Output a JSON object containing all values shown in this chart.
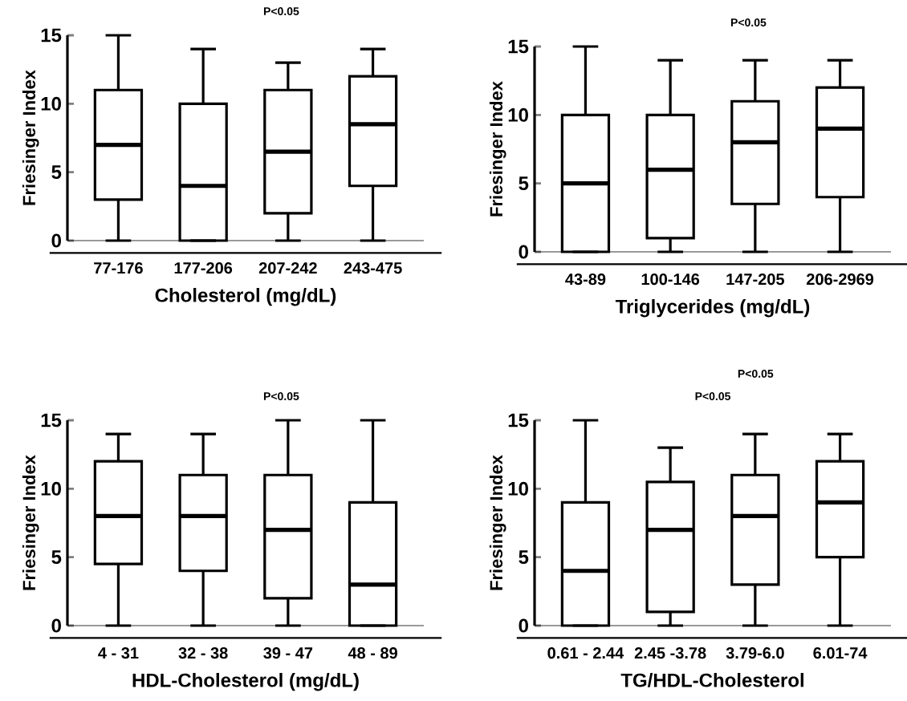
{
  "chart_data": [
    {
      "type": "box",
      "ylabel": "Friesinger Index",
      "xlabel": "Cholesterol (mg/dL)",
      "categories": [
        "77-176",
        "177-206",
        "207-242",
        "243-475"
      ],
      "ylim": [
        0,
        15
      ],
      "yticks": [
        0,
        5,
        10,
        15
      ],
      "annotations": [
        "P<0.05"
      ],
      "boxes": [
        {
          "low": 0,
          "q1": 3,
          "median": 7,
          "q3": 11,
          "high": 15
        },
        {
          "low": 0,
          "q1": 0,
          "median": 4,
          "q3": 10,
          "high": 14
        },
        {
          "low": 0,
          "q1": 2,
          "median": 6.5,
          "q3": 11,
          "high": 13
        },
        {
          "low": 0,
          "q1": 4,
          "median": 8.5,
          "q3": 12,
          "high": 14
        }
      ]
    },
    {
      "type": "box",
      "ylabel": "Friesinger Index",
      "xlabel": "Triglycerides (mg/dL)",
      "categories": [
        "43-89",
        "100-146",
        "147-205",
        "206-2969"
      ],
      "ylim": [
        0,
        15
      ],
      "yticks": [
        0,
        5,
        10,
        15
      ],
      "annotations": [
        "P<0.05"
      ],
      "boxes": [
        {
          "low": 0,
          "q1": 0,
          "median": 5,
          "q3": 10,
          "high": 15
        },
        {
          "low": 0,
          "q1": 1,
          "median": 6,
          "q3": 10,
          "high": 14
        },
        {
          "low": 0,
          "q1": 3.5,
          "median": 8,
          "q3": 11,
          "high": 14
        },
        {
          "low": 0,
          "q1": 4,
          "median": 9,
          "q3": 12,
          "high": 14
        }
      ]
    },
    {
      "type": "box",
      "ylabel": "Friesinger Index",
      "xlabel": "HDL-Cholesterol (mg/dL)",
      "categories": [
        "4 - 31",
        "32 - 38",
        "39 - 47",
        "48 - 89"
      ],
      "ylim": [
        0,
        15
      ],
      "yticks": [
        0,
        5,
        10,
        15
      ],
      "annotations": [
        "P<0.05"
      ],
      "boxes": [
        {
          "low": 0,
          "q1": 4.5,
          "median": 8,
          "q3": 12,
          "high": 14
        },
        {
          "low": 0,
          "q1": 4,
          "median": 8,
          "q3": 11,
          "high": 14
        },
        {
          "low": 0,
          "q1": 2,
          "median": 7,
          "q3": 11,
          "high": 15
        },
        {
          "low": 0,
          "q1": 0,
          "median": 3,
          "q3": 9,
          "high": 15
        }
      ]
    },
    {
      "type": "box",
      "ylabel": "Friesinger Index",
      "xlabel": "TG/HDL-Cholesterol",
      "categories": [
        "0.61 - 2.44",
        "2.45 -3.78",
        "3.79-6.0",
        "6.01-74"
      ],
      "ylim": [
        0,
        15
      ],
      "yticks": [
        0,
        5,
        10,
        15
      ],
      "annotations": [
        "P<0.05",
        "P<0.05"
      ],
      "boxes": [
        {
          "low": 0,
          "q1": 0,
          "median": 4,
          "q3": 9,
          "high": 15
        },
        {
          "low": 0,
          "q1": 1,
          "median": 7,
          "q3": 10.5,
          "high": 13
        },
        {
          "low": 0,
          "q1": 3,
          "median": 8,
          "q3": 11,
          "high": 14
        },
        {
          "low": 0,
          "q1": 5,
          "median": 9,
          "q3": 12,
          "high": 14
        }
      ]
    }
  ]
}
